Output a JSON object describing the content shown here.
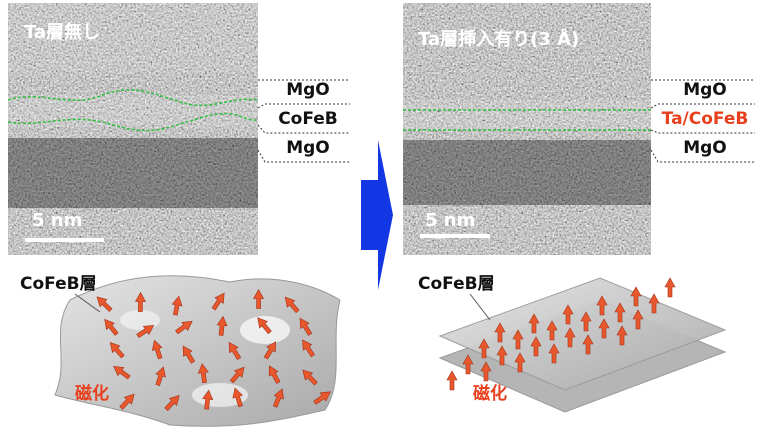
{
  "left_panel": {
    "title": "Ta層無し",
    "layers": [
      "MgO",
      "CoFeB",
      "MgO"
    ],
    "scale_bar": "5 nm",
    "layer_label": "CoFeB層",
    "magnetization_label": "磁化"
  },
  "right_panel": {
    "title": "Ta層挿入有り(3 Å)",
    "layers": [
      "MgO",
      "Ta/CoFeB",
      "MgO"
    ],
    "scale_bar": "5 nm",
    "layer_label": "CoFeB層",
    "magnetization_label": "磁化"
  }
}
